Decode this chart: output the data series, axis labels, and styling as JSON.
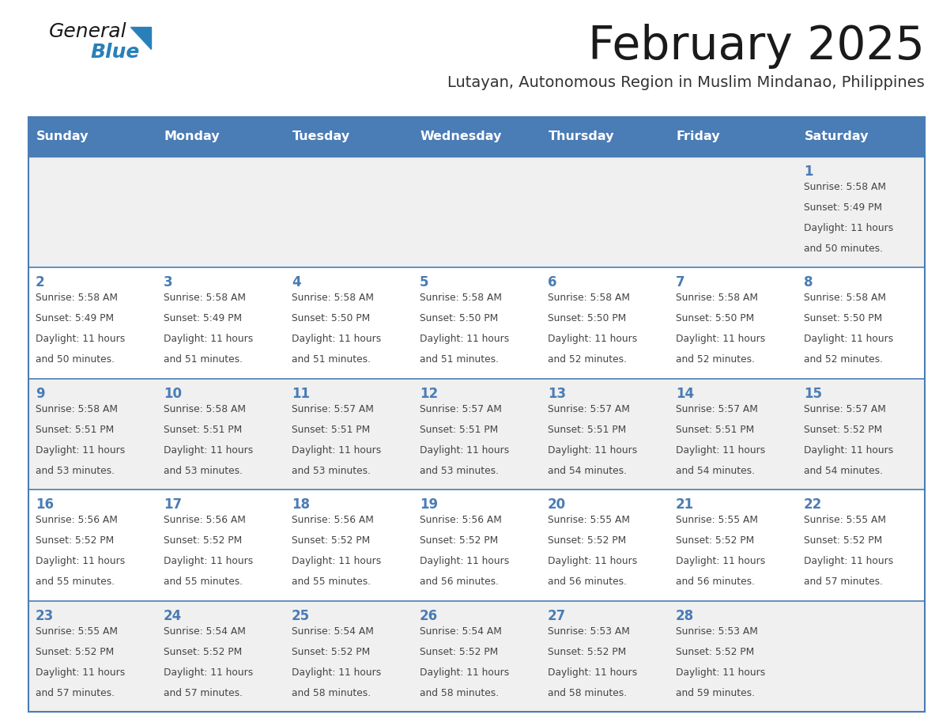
{
  "title": "February 2025",
  "subtitle": "Lutayan, Autonomous Region in Muslim Mindanao, Philippines",
  "header_bg": "#4a7cb5",
  "header_text": "#ffffff",
  "days_of_week": [
    "Sunday",
    "Monday",
    "Tuesday",
    "Wednesday",
    "Thursday",
    "Friday",
    "Saturday"
  ],
  "row_bg_odd": "#f0f0f0",
  "row_bg_even": "#ffffff",
  "cell_border_color": "#4a7cb5",
  "day_number_color": "#4a7cb5",
  "text_color": "#444444",
  "title_color": "#1a1a1a",
  "subtitle_color": "#333333",
  "logo_general_color": "#1a1a1a",
  "logo_blue_color": "#2980b9",
  "calendar": [
    [
      {
        "day": null,
        "sunrise": null,
        "sunset": null,
        "daylight_hrs": null,
        "daylight_min": null
      },
      {
        "day": null,
        "sunrise": null,
        "sunset": null,
        "daylight_hrs": null,
        "daylight_min": null
      },
      {
        "day": null,
        "sunrise": null,
        "sunset": null,
        "daylight_hrs": null,
        "daylight_min": null
      },
      {
        "day": null,
        "sunrise": null,
        "sunset": null,
        "daylight_hrs": null,
        "daylight_min": null
      },
      {
        "day": null,
        "sunrise": null,
        "sunset": null,
        "daylight_hrs": null,
        "daylight_min": null
      },
      {
        "day": null,
        "sunrise": null,
        "sunset": null,
        "daylight_hrs": null,
        "daylight_min": null
      },
      {
        "day": 1,
        "sunrise": "5:58 AM",
        "sunset": "5:49 PM",
        "daylight_hrs": 11,
        "daylight_min": 50
      }
    ],
    [
      {
        "day": 2,
        "sunrise": "5:58 AM",
        "sunset": "5:49 PM",
        "daylight_hrs": 11,
        "daylight_min": 50
      },
      {
        "day": 3,
        "sunrise": "5:58 AM",
        "sunset": "5:49 PM",
        "daylight_hrs": 11,
        "daylight_min": 51
      },
      {
        "day": 4,
        "sunrise": "5:58 AM",
        "sunset": "5:50 PM",
        "daylight_hrs": 11,
        "daylight_min": 51
      },
      {
        "day": 5,
        "sunrise": "5:58 AM",
        "sunset": "5:50 PM",
        "daylight_hrs": 11,
        "daylight_min": 51
      },
      {
        "day": 6,
        "sunrise": "5:58 AM",
        "sunset": "5:50 PM",
        "daylight_hrs": 11,
        "daylight_min": 52
      },
      {
        "day": 7,
        "sunrise": "5:58 AM",
        "sunset": "5:50 PM",
        "daylight_hrs": 11,
        "daylight_min": 52
      },
      {
        "day": 8,
        "sunrise": "5:58 AM",
        "sunset": "5:50 PM",
        "daylight_hrs": 11,
        "daylight_min": 52
      }
    ],
    [
      {
        "day": 9,
        "sunrise": "5:58 AM",
        "sunset": "5:51 PM",
        "daylight_hrs": 11,
        "daylight_min": 53
      },
      {
        "day": 10,
        "sunrise": "5:58 AM",
        "sunset": "5:51 PM",
        "daylight_hrs": 11,
        "daylight_min": 53
      },
      {
        "day": 11,
        "sunrise": "5:57 AM",
        "sunset": "5:51 PM",
        "daylight_hrs": 11,
        "daylight_min": 53
      },
      {
        "day": 12,
        "sunrise": "5:57 AM",
        "sunset": "5:51 PM",
        "daylight_hrs": 11,
        "daylight_min": 53
      },
      {
        "day": 13,
        "sunrise": "5:57 AM",
        "sunset": "5:51 PM",
        "daylight_hrs": 11,
        "daylight_min": 54
      },
      {
        "day": 14,
        "sunrise": "5:57 AM",
        "sunset": "5:51 PM",
        "daylight_hrs": 11,
        "daylight_min": 54
      },
      {
        "day": 15,
        "sunrise": "5:57 AM",
        "sunset": "5:52 PM",
        "daylight_hrs": 11,
        "daylight_min": 54
      }
    ],
    [
      {
        "day": 16,
        "sunrise": "5:56 AM",
        "sunset": "5:52 PM",
        "daylight_hrs": 11,
        "daylight_min": 55
      },
      {
        "day": 17,
        "sunrise": "5:56 AM",
        "sunset": "5:52 PM",
        "daylight_hrs": 11,
        "daylight_min": 55
      },
      {
        "day": 18,
        "sunrise": "5:56 AM",
        "sunset": "5:52 PM",
        "daylight_hrs": 11,
        "daylight_min": 55
      },
      {
        "day": 19,
        "sunrise": "5:56 AM",
        "sunset": "5:52 PM",
        "daylight_hrs": 11,
        "daylight_min": 56
      },
      {
        "day": 20,
        "sunrise": "5:55 AM",
        "sunset": "5:52 PM",
        "daylight_hrs": 11,
        "daylight_min": 56
      },
      {
        "day": 21,
        "sunrise": "5:55 AM",
        "sunset": "5:52 PM",
        "daylight_hrs": 11,
        "daylight_min": 56
      },
      {
        "day": 22,
        "sunrise": "5:55 AM",
        "sunset": "5:52 PM",
        "daylight_hrs": 11,
        "daylight_min": 57
      }
    ],
    [
      {
        "day": 23,
        "sunrise": "5:55 AM",
        "sunset": "5:52 PM",
        "daylight_hrs": 11,
        "daylight_min": 57
      },
      {
        "day": 24,
        "sunrise": "5:54 AM",
        "sunset": "5:52 PM",
        "daylight_hrs": 11,
        "daylight_min": 57
      },
      {
        "day": 25,
        "sunrise": "5:54 AM",
        "sunset": "5:52 PM",
        "daylight_hrs": 11,
        "daylight_min": 58
      },
      {
        "day": 26,
        "sunrise": "5:54 AM",
        "sunset": "5:52 PM",
        "daylight_hrs": 11,
        "daylight_min": 58
      },
      {
        "day": 27,
        "sunrise": "5:53 AM",
        "sunset": "5:52 PM",
        "daylight_hrs": 11,
        "daylight_min": 58
      },
      {
        "day": 28,
        "sunrise": "5:53 AM",
        "sunset": "5:52 PM",
        "daylight_hrs": 11,
        "daylight_min": 59
      },
      {
        "day": null,
        "sunrise": null,
        "sunset": null,
        "daylight_hrs": null,
        "daylight_min": null
      }
    ]
  ]
}
